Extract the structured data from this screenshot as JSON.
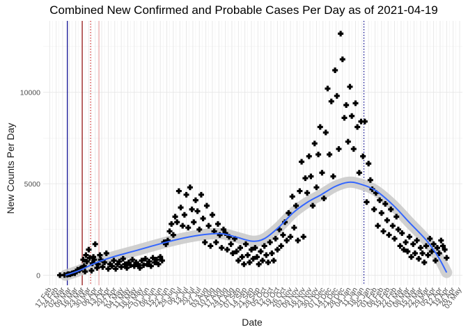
{
  "chart_data": {
    "type": "scatter",
    "title": "Combined New Confirmed and Probable Cases Per Day as of 2021-04-19",
    "xlabel": "Date",
    "ylabel": "New Counts Per Day",
    "x_range": [
      "2020-02-10",
      "2021-05-06"
    ],
    "ylim": [
      -550,
      13900
    ],
    "y_ticks": [
      0,
      5000,
      10000
    ],
    "grid": true,
    "x_tick_labels": [
      "17 Feb",
      "24 Feb",
      "02 Mar",
      "09 Mar",
      "16 Mar",
      "23 Mar",
      "30 Mar",
      "06 Apr",
      "13 Apr",
      "20 Apr",
      "27 Apr",
      "04 May",
      "11 May",
      "18 May",
      "25 May",
      "01 Jun",
      "08 Jun",
      "15 Jun",
      "22 Jun",
      "29 Jun",
      "06 Jul",
      "13 Jul",
      "20 Jul",
      "27 Jul",
      "03 Aug",
      "10 Aug",
      "17 Aug",
      "24 Aug",
      "31 Aug",
      "07 Sep",
      "14 Sep",
      "21 Sep",
      "28 Sep",
      "05 Oct",
      "12 Oct",
      "19 Oct",
      "26 Oct",
      "02 Nov",
      "09 Nov",
      "16 Nov",
      "23 Nov",
      "30 Nov",
      "07 Dec",
      "14 Dec",
      "21 Dec",
      "28 Dec",
      "04 Jan",
      "11 Jan",
      "18 Jan",
      "25 Jan",
      "01 Feb",
      "08 Feb",
      "15 Feb",
      "22 Feb",
      "01 Mar",
      "08 Mar",
      "15 Mar",
      "22 Mar",
      "29 Mar",
      "05 Apr",
      "12 Apr",
      "19 Apr",
      "26 Apr",
      "03 May"
    ],
    "x_tick_dates": [
      "2020-02-17",
      "2020-02-24",
      "2020-03-02",
      "2020-03-09",
      "2020-03-16",
      "2020-03-23",
      "2020-03-30",
      "2020-04-06",
      "2020-04-13",
      "2020-04-20",
      "2020-04-27",
      "2020-05-04",
      "2020-05-11",
      "2020-05-18",
      "2020-05-25",
      "2020-06-01",
      "2020-06-08",
      "2020-06-15",
      "2020-06-22",
      "2020-06-29",
      "2020-07-06",
      "2020-07-13",
      "2020-07-20",
      "2020-07-27",
      "2020-08-03",
      "2020-08-10",
      "2020-08-17",
      "2020-08-24",
      "2020-08-31",
      "2020-09-07",
      "2020-09-14",
      "2020-09-21",
      "2020-09-28",
      "2020-10-05",
      "2020-10-12",
      "2020-10-19",
      "2020-10-26",
      "2020-11-02",
      "2020-11-09",
      "2020-11-16",
      "2020-11-23",
      "2020-11-30",
      "2020-12-07",
      "2020-12-14",
      "2020-12-21",
      "2020-12-28",
      "2021-01-04",
      "2021-01-11",
      "2021-01-18",
      "2021-01-25",
      "2021-02-01",
      "2021-02-08",
      "2021-02-15",
      "2021-02-22",
      "2021-03-01",
      "2021-03-08",
      "2021-03-15",
      "2021-03-22",
      "2021-03-29",
      "2021-04-05",
      "2021-04-12",
      "2021-04-19",
      "2021-04-26",
      "2021-05-03"
    ],
    "vlines": [
      {
        "x": "2020-03-07",
        "color": "#00008b",
        "style": "solid"
      },
      {
        "x": "2020-03-23",
        "color": "#8b0000",
        "style": "solid"
      },
      {
        "x": "2020-04-01",
        "color": "#cd2626",
        "style": "dotted"
      },
      {
        "x": "2020-04-10",
        "color": "#e8a0a0",
        "style": "solid"
      },
      {
        "x": "2021-01-20",
        "color": "#00008b",
        "style": "dotted"
      }
    ],
    "points_color": "#000000",
    "smooth_color": "#3366ff",
    "smooth": [
      {
        "x": "2020-03-05",
        "y": 0
      },
      {
        "x": "2020-03-20",
        "y": 260
      },
      {
        "x": "2020-04-05",
        "y": 640
      },
      {
        "x": "2020-04-25",
        "y": 1000
      },
      {
        "x": "2020-05-20",
        "y": 1350
      },
      {
        "x": "2020-06-15",
        "y": 1720
      },
      {
        "x": "2020-07-10",
        "y": 2030
      },
      {
        "x": "2020-08-01",
        "y": 2220
      },
      {
        "x": "2020-08-20",
        "y": 2270
      },
      {
        "x": "2020-09-05",
        "y": 2080
      },
      {
        "x": "2020-09-22",
        "y": 1860
      },
      {
        "x": "2020-10-05",
        "y": 2000
      },
      {
        "x": "2020-10-20",
        "y": 2600
      },
      {
        "x": "2020-11-05",
        "y": 3420
      },
      {
        "x": "2020-11-20",
        "y": 3980
      },
      {
        "x": "2020-12-05",
        "y": 4400
      },
      {
        "x": "2020-12-20",
        "y": 4850
      },
      {
        "x": "2021-01-03",
        "y": 5080
      },
      {
        "x": "2021-01-15",
        "y": 5000
      },
      {
        "x": "2021-02-01",
        "y": 4650
      },
      {
        "x": "2021-02-20",
        "y": 3850
      },
      {
        "x": "2021-03-10",
        "y": 2880
      },
      {
        "x": "2021-03-28",
        "y": 1920
      },
      {
        "x": "2021-04-10",
        "y": 1000
      },
      {
        "x": "2021-04-19",
        "y": 150
      }
    ],
    "points": [
      {
        "x": "2020-02-28",
        "y": 0
      },
      {
        "x": "2020-03-04",
        "y": 10
      },
      {
        "x": "2020-03-07",
        "y": 30
      },
      {
        "x": "2020-03-08",
        "y": 60
      },
      {
        "x": "2020-03-10",
        "y": 50
      },
      {
        "x": "2020-03-12",
        "y": 100
      },
      {
        "x": "2020-03-14",
        "y": 130
      },
      {
        "x": "2020-03-15",
        "y": 110
      },
      {
        "x": "2020-03-17",
        "y": 200
      },
      {
        "x": "2020-03-18",
        "y": 300
      },
      {
        "x": "2020-03-20",
        "y": 270
      },
      {
        "x": "2020-03-21",
        "y": 350
      },
      {
        "x": "2020-03-22",
        "y": 380
      },
      {
        "x": "2020-03-24",
        "y": 850
      },
      {
        "x": "2020-03-25",
        "y": 500
      },
      {
        "x": "2020-03-26",
        "y": 200
      },
      {
        "x": "2020-03-27",
        "y": 1100
      },
      {
        "x": "2020-03-28",
        "y": 750
      },
      {
        "x": "2020-03-30",
        "y": 1400
      },
      {
        "x": "2020-03-31",
        "y": 950
      },
      {
        "x": "2020-04-02",
        "y": 250
      },
      {
        "x": "2020-04-03",
        "y": 650
      },
      {
        "x": "2020-04-04",
        "y": 1000
      },
      {
        "x": "2020-04-05",
        "y": 850
      },
      {
        "x": "2020-04-06",
        "y": 1700
      },
      {
        "x": "2020-04-08",
        "y": 400
      },
      {
        "x": "2020-04-09",
        "y": 600
      },
      {
        "x": "2020-04-11",
        "y": 1100
      },
      {
        "x": "2020-04-12",
        "y": 850
      },
      {
        "x": "2020-04-14",
        "y": 450
      },
      {
        "x": "2020-04-16",
        "y": 700
      },
      {
        "x": "2020-04-18",
        "y": 1200
      },
      {
        "x": "2020-04-20",
        "y": 350
      },
      {
        "x": "2020-04-22",
        "y": 600
      },
      {
        "x": "2020-04-24",
        "y": 500
      },
      {
        "x": "2020-04-26",
        "y": 800
      },
      {
        "x": "2020-04-28",
        "y": 350
      },
      {
        "x": "2020-04-30",
        "y": 600
      },
      {
        "x": "2020-05-02",
        "y": 750
      },
      {
        "x": "2020-05-04",
        "y": 450
      },
      {
        "x": "2020-05-06",
        "y": 900
      },
      {
        "x": "2020-05-08",
        "y": 600
      },
      {
        "x": "2020-05-10",
        "y": 400
      },
      {
        "x": "2020-05-12",
        "y": 700
      },
      {
        "x": "2020-05-14",
        "y": 550
      },
      {
        "x": "2020-05-16",
        "y": 850
      },
      {
        "x": "2020-05-18",
        "y": 500
      },
      {
        "x": "2020-05-20",
        "y": 700
      },
      {
        "x": "2020-05-22",
        "y": 600
      },
      {
        "x": "2020-05-24",
        "y": 400
      },
      {
        "x": "2020-05-26",
        "y": 800
      },
      {
        "x": "2020-05-28",
        "y": 550
      },
      {
        "x": "2020-05-30",
        "y": 900
      },
      {
        "x": "2020-06-01",
        "y": 600
      },
      {
        "x": "2020-06-03",
        "y": 750
      },
      {
        "x": "2020-06-05",
        "y": 500
      },
      {
        "x": "2020-06-07",
        "y": 950
      },
      {
        "x": "2020-06-09",
        "y": 700
      },
      {
        "x": "2020-06-11",
        "y": 850
      },
      {
        "x": "2020-06-13",
        "y": 600
      },
      {
        "x": "2020-06-15",
        "y": 1000
      },
      {
        "x": "2020-06-17",
        "y": 800
      },
      {
        "x": "2020-06-19",
        "y": 1800
      },
      {
        "x": "2020-06-21",
        "y": 1700
      },
      {
        "x": "2020-06-23",
        "y": 1900
      },
      {
        "x": "2020-06-25",
        "y": 2400
      },
      {
        "x": "2020-06-27",
        "y": 2800
      },
      {
        "x": "2020-06-29",
        "y": 2200
      },
      {
        "x": "2020-07-01",
        "y": 3200
      },
      {
        "x": "2020-07-03",
        "y": 2900
      },
      {
        "x": "2020-07-05",
        "y": 4600
      },
      {
        "x": "2020-07-07",
        "y": 3700
      },
      {
        "x": "2020-07-09",
        "y": 2700
      },
      {
        "x": "2020-07-11",
        "y": 3300
      },
      {
        "x": "2020-07-13",
        "y": 4400
      },
      {
        "x": "2020-07-15",
        "y": 2600
      },
      {
        "x": "2020-07-17",
        "y": 4800
      },
      {
        "x": "2020-07-19",
        "y": 3600
      },
      {
        "x": "2020-07-21",
        "y": 2900
      },
      {
        "x": "2020-07-23",
        "y": 4100
      },
      {
        "x": "2020-07-25",
        "y": 3500
      },
      {
        "x": "2020-07-27",
        "y": 2500
      },
      {
        "x": "2020-07-29",
        "y": 4400
      },
      {
        "x": "2020-07-31",
        "y": 3100
      },
      {
        "x": "2020-08-02",
        "y": 1800
      },
      {
        "x": "2020-08-04",
        "y": 3800
      },
      {
        "x": "2020-08-06",
        "y": 2700
      },
      {
        "x": "2020-08-08",
        "y": 1600
      },
      {
        "x": "2020-08-10",
        "y": 3300
      },
      {
        "x": "2020-08-12",
        "y": 2400
      },
      {
        "x": "2020-08-14",
        "y": 1800
      },
      {
        "x": "2020-08-16",
        "y": 2800
      },
      {
        "x": "2020-08-18",
        "y": 2200
      },
      {
        "x": "2020-08-20",
        "y": 1500
      },
      {
        "x": "2020-08-22",
        "y": 2500
      },
      {
        "x": "2020-08-24",
        "y": 2300
      },
      {
        "x": "2020-08-26",
        "y": 1400
      },
      {
        "x": "2020-08-28",
        "y": 2100
      },
      {
        "x": "2020-08-30",
        "y": 1700
      },
      {
        "x": "2020-09-01",
        "y": 1200
      },
      {
        "x": "2020-09-03",
        "y": 2000
      },
      {
        "x": "2020-09-05",
        "y": 1300
      },
      {
        "x": "2020-09-07",
        "y": 800
      },
      {
        "x": "2020-09-09",
        "y": 1500
      },
      {
        "x": "2020-09-11",
        "y": 1000
      },
      {
        "x": "2020-09-13",
        "y": 600
      },
      {
        "x": "2020-09-15",
        "y": 1700
      },
      {
        "x": "2020-09-17",
        "y": 1100
      },
      {
        "x": "2020-09-19",
        "y": 700
      },
      {
        "x": "2020-09-21",
        "y": 1400
      },
      {
        "x": "2020-09-23",
        "y": 900
      },
      {
        "x": "2020-09-25",
        "y": 1500
      },
      {
        "x": "2020-09-27",
        "y": 1000
      },
      {
        "x": "2020-09-29",
        "y": 600
      },
      {
        "x": "2020-10-01",
        "y": 1300
      },
      {
        "x": "2020-10-03",
        "y": 800
      },
      {
        "x": "2020-10-05",
        "y": 1600
      },
      {
        "x": "2020-10-07",
        "y": 1100
      },
      {
        "x": "2020-10-09",
        "y": 700
      },
      {
        "x": "2020-10-11",
        "y": 1800
      },
      {
        "x": "2020-10-13",
        "y": 1200
      },
      {
        "x": "2020-10-15",
        "y": 800
      },
      {
        "x": "2020-10-17",
        "y": 2000
      },
      {
        "x": "2020-10-19",
        "y": 1400
      },
      {
        "x": "2020-10-21",
        "y": 2500
      },
      {
        "x": "2020-10-23",
        "y": 1600
      },
      {
        "x": "2020-10-25",
        "y": 2200
      },
      {
        "x": "2020-10-27",
        "y": 2900
      },
      {
        "x": "2020-10-29",
        "y": 1900
      },
      {
        "x": "2020-10-31",
        "y": 3400
      },
      {
        "x": "2020-11-02",
        "y": 2100
      },
      {
        "x": "2020-11-04",
        "y": 4300
      },
      {
        "x": "2020-11-06",
        "y": 2600
      },
      {
        "x": "2020-11-08",
        "y": 3800
      },
      {
        "x": "2020-11-10",
        "y": 1900
      },
      {
        "x": "2020-11-12",
        "y": 4600
      },
      {
        "x": "2020-11-14",
        "y": 6200
      },
      {
        "x": "2020-11-16",
        "y": 2100
      },
      {
        "x": "2020-11-18",
        "y": 5300
      },
      {
        "x": "2020-11-20",
        "y": 4500
      },
      {
        "x": "2020-11-22",
        "y": 6500
      },
      {
        "x": "2020-11-24",
        "y": 5400
      },
      {
        "x": "2020-11-26",
        "y": 3800
      },
      {
        "x": "2020-11-28",
        "y": 7200
      },
      {
        "x": "2020-11-30",
        "y": 4800
      },
      {
        "x": "2020-12-02",
        "y": 6600
      },
      {
        "x": "2020-12-04",
        "y": 8100
      },
      {
        "x": "2020-12-06",
        "y": 5600
      },
      {
        "x": "2020-12-08",
        "y": 4200
      },
      {
        "x": "2020-12-10",
        "y": 7800
      },
      {
        "x": "2020-12-12",
        "y": 10200
      },
      {
        "x": "2020-12-14",
        "y": 6600
      },
      {
        "x": "2020-12-16",
        "y": 9500
      },
      {
        "x": "2020-12-18",
        "y": 5400
      },
      {
        "x": "2020-12-20",
        "y": 11200
      },
      {
        "x": "2020-12-22",
        "y": 9800
      },
      {
        "x": "2020-12-24",
        "y": 6900
      },
      {
        "x": "2020-12-26",
        "y": 13200
      },
      {
        "x": "2020-12-28",
        "y": 11800
      },
      {
        "x": "2020-12-30",
        "y": 8600
      },
      {
        "x": "2021-01-01",
        "y": 9300
      },
      {
        "x": "2021-01-03",
        "y": 7300
      },
      {
        "x": "2021-01-05",
        "y": 10300
      },
      {
        "x": "2021-01-07",
        "y": 8700
      },
      {
        "x": "2021-01-09",
        "y": 6900
      },
      {
        "x": "2021-01-11",
        "y": 9400
      },
      {
        "x": "2021-01-13",
        "y": 8100
      },
      {
        "x": "2021-01-15",
        "y": 5600
      },
      {
        "x": "2021-01-17",
        "y": 8400
      },
      {
        "x": "2021-01-19",
        "y": 6500
      },
      {
        "x": "2021-01-21",
        "y": 8400
      },
      {
        "x": "2021-01-23",
        "y": 4000
      },
      {
        "x": "2021-01-25",
        "y": 6100
      },
      {
        "x": "2021-01-27",
        "y": 5200
      },
      {
        "x": "2021-01-29",
        "y": 4700
      },
      {
        "x": "2021-01-31",
        "y": 3600
      },
      {
        "x": "2021-02-02",
        "y": 4500
      },
      {
        "x": "2021-02-04",
        "y": 2700
      },
      {
        "x": "2021-02-06",
        "y": 4100
      },
      {
        "x": "2021-02-08",
        "y": 3400
      },
      {
        "x": "2021-02-10",
        "y": 2400
      },
      {
        "x": "2021-02-12",
        "y": 3900
      },
      {
        "x": "2021-02-14",
        "y": 3000
      },
      {
        "x": "2021-02-16",
        "y": 2200
      },
      {
        "x": "2021-02-18",
        "y": 3600
      },
      {
        "x": "2021-02-20",
        "y": 2700
      },
      {
        "x": "2021-02-22",
        "y": 2000
      },
      {
        "x": "2021-02-24",
        "y": 3200
      },
      {
        "x": "2021-02-26",
        "y": 2500
      },
      {
        "x": "2021-02-28",
        "y": 1600
      },
      {
        "x": "2021-03-02",
        "y": 2300
      },
      {
        "x": "2021-03-04",
        "y": 1400
      },
      {
        "x": "2021-03-06",
        "y": 1800
      },
      {
        "x": "2021-03-08",
        "y": 1300
      },
      {
        "x": "2021-03-10",
        "y": 2100
      },
      {
        "x": "2021-03-12",
        "y": 1000
      },
      {
        "x": "2021-03-14",
        "y": 1700
      },
      {
        "x": "2021-03-16",
        "y": 1200
      },
      {
        "x": "2021-03-18",
        "y": 1900
      },
      {
        "x": "2021-03-20",
        "y": 900
      },
      {
        "x": "2021-03-22",
        "y": 1500
      },
      {
        "x": "2021-03-24",
        "y": 1200
      },
      {
        "x": "2021-03-26",
        "y": 700
      },
      {
        "x": "2021-03-28",
        "y": 1600
      },
      {
        "x": "2021-03-30",
        "y": 1100
      },
      {
        "x": "2021-04-01",
        "y": 2000
      },
      {
        "x": "2021-04-03",
        "y": 1300
      },
      {
        "x": "2021-04-05",
        "y": 1700
      },
      {
        "x": "2021-04-07",
        "y": 800
      },
      {
        "x": "2021-04-09",
        "y": 1500
      },
      {
        "x": "2021-04-11",
        "y": 1200
      },
      {
        "x": "2021-04-13",
        "y": 1900
      },
      {
        "x": "2021-04-15",
        "y": 1600
      },
      {
        "x": "2021-04-17",
        "y": 1400
      },
      {
        "x": "2021-04-19",
        "y": 950
      }
    ]
  }
}
